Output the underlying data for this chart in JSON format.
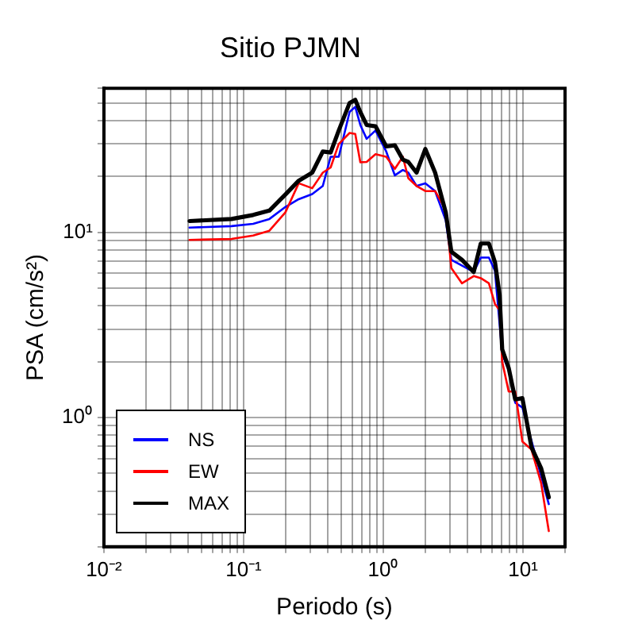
{
  "chart_data": {
    "type": "line",
    "title": "Sitio PJMN",
    "xlabel": "Periodo (s)",
    "ylabel": "PSA (cm/s²)",
    "x": [
      0.041,
      0.082,
      0.117,
      0.153,
      0.199,
      0.248,
      0.31,
      0.369,
      0.42,
      0.48,
      0.574,
      0.63,
      0.685,
      0.76,
      0.88,
      1.05,
      1.21,
      1.38,
      1.51,
      1.73,
      2.0,
      2.35,
      2.8,
      3.07,
      3.66,
      4.44,
      4.99,
      5.7,
      6.3,
      6.8,
      7.1,
      7.9,
      8.8,
      9.9,
      11.5,
      13.5,
      15.3
    ],
    "series": [
      {
        "name": "NS",
        "color": "#0000ff",
        "values": [
          10.6,
          10.8,
          11.1,
          11.8,
          13.7,
          15.1,
          16.1,
          17.8,
          25.6,
          25.6,
          44.7,
          47.6,
          38,
          32,
          35.5,
          27.3,
          20.3,
          21.7,
          21,
          17.8,
          18.4,
          16.7,
          11.6,
          7.1,
          6.6,
          6.1,
          7.3,
          7.3,
          6.2,
          null,
          2.2,
          1.8,
          1.2,
          1.13,
          null,
          null,
          0.34
        ]
      },
      {
        "name": "EW",
        "color": "#ff0000",
        "values": [
          9.1,
          9.2,
          9.6,
          10.2,
          12.8,
          18.4,
          17.3,
          21,
          22.4,
          30,
          34.4,
          34,
          23.9,
          24,
          26.4,
          25.6,
          22,
          25.6,
          19.6,
          17.8,
          16.7,
          16.7,
          13.2,
          6.4,
          5.3,
          5.8,
          5.65,
          5.3,
          4.1,
          3.8,
          2.0,
          1.38,
          1.38,
          0.74,
          0.67,
          0.44,
          0.243
        ]
      },
      {
        "name": "MAX",
        "color": "#000000",
        "values": [
          11.5,
          11.8,
          12.4,
          13.1,
          16,
          19,
          21,
          27.3,
          27,
          35.5,
          50,
          52,
          44.6,
          38,
          37.4,
          29.1,
          29.5,
          24.7,
          24,
          21,
          28.2,
          21,
          12.8,
          7.85,
          7.1,
          6.1,
          8.7,
          8.7,
          6.9,
          4.6,
          2.33,
          1.85,
          1.25,
          1.27,
          0.69,
          0.53,
          0.37
        ]
      }
    ],
    "log": "xy",
    "xlim": [
      0.01,
      20
    ],
    "ylim": [
      0.2,
      60
    ],
    "xticks": [
      {
        "value": 0.01,
        "label": "10⁻²"
      },
      {
        "value": 0.02,
        "label": null
      },
      {
        "value": 0.03,
        "label": null
      },
      {
        "value": 0.04,
        "label": null
      },
      {
        "value": 0.05,
        "label": null
      },
      {
        "value": 0.06,
        "label": null
      },
      {
        "value": 0.07,
        "label": null
      },
      {
        "value": 0.08,
        "label": null
      },
      {
        "value": 0.09,
        "label": null
      },
      {
        "value": 0.1,
        "label": "10⁻¹"
      },
      {
        "value": 0.2,
        "label": null
      },
      {
        "value": 0.3,
        "label": null
      },
      {
        "value": 0.4,
        "label": null
      },
      {
        "value": 0.5,
        "label": null
      },
      {
        "value": 0.6,
        "label": null
      },
      {
        "value": 0.7,
        "label": null
      },
      {
        "value": 0.8,
        "label": null
      },
      {
        "value": 0.9,
        "label": null
      },
      {
        "value": 1,
        "label": "10⁰"
      },
      {
        "value": 2,
        "label": null
      },
      {
        "value": 3,
        "label": null
      },
      {
        "value": 4,
        "label": null
      },
      {
        "value": 5,
        "label": null
      },
      {
        "value": 6,
        "label": null
      },
      {
        "value": 7,
        "label": null
      },
      {
        "value": 8,
        "label": null
      },
      {
        "value": 9,
        "label": null
      },
      {
        "value": 10,
        "label": "10¹"
      },
      {
        "value": 20,
        "label": null
      }
    ],
    "yticks": [
      {
        "value": 0.2,
        "label": null
      },
      {
        "value": 0.3,
        "label": null
      },
      {
        "value": 0.4,
        "label": null
      },
      {
        "value": 0.5,
        "label": null
      },
      {
        "value": 0.6,
        "label": null
      },
      {
        "value": 0.7,
        "label": null
      },
      {
        "value": 0.8,
        "label": null
      },
      {
        "value": 0.9,
        "label": null
      },
      {
        "value": 1,
        "label": "10⁰"
      },
      {
        "value": 2,
        "label": null
      },
      {
        "value": 3,
        "label": null
      },
      {
        "value": 4,
        "label": null
      },
      {
        "value": 5,
        "label": null
      },
      {
        "value": 6,
        "label": null
      },
      {
        "value": 7,
        "label": null
      },
      {
        "value": 8,
        "label": null
      },
      {
        "value": 9,
        "label": null
      },
      {
        "value": 10,
        "label": "10¹"
      },
      {
        "value": 20,
        "label": null
      },
      {
        "value": 30,
        "label": null
      },
      {
        "value": 40,
        "label": null
      },
      {
        "value": 50,
        "label": null
      },
      {
        "value": 60,
        "label": null
      }
    ],
    "grid": true,
    "legend": "bottom left",
    "line_style": "solid",
    "marker": "none"
  }
}
